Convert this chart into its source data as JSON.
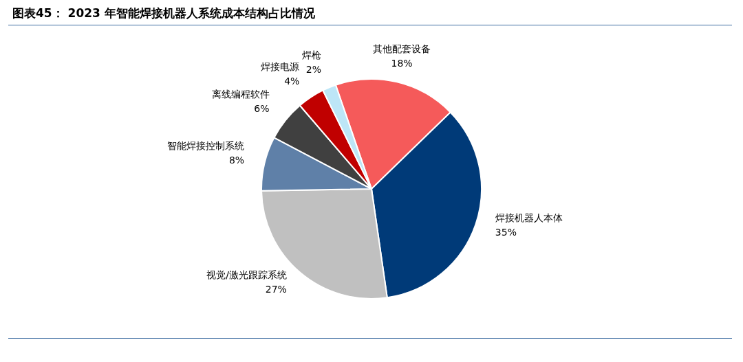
{
  "chart_data": {
    "type": "pie",
    "title": "图表45： 2023 年智能焊接机器人系统成本结构占比情况",
    "categories": [
      "其他配套设备",
      "焊接机器人本体",
      "视觉/激光跟踪系统",
      "智能焊接控制系统",
      "离线编程软件",
      "焊接电源",
      "焊枪"
    ],
    "values": [
      18,
      35,
      27,
      8,
      6,
      4,
      2
    ],
    "colors": [
      "#f55a5a",
      "#003a78",
      "#c0c0c0",
      "#5f80a8",
      "#404040",
      "#c00000",
      "#bde6f7"
    ],
    "value_labels": [
      "18%",
      "35%",
      "27%",
      "8%",
      "6%",
      "4%",
      "2%"
    ],
    "legend": false
  }
}
